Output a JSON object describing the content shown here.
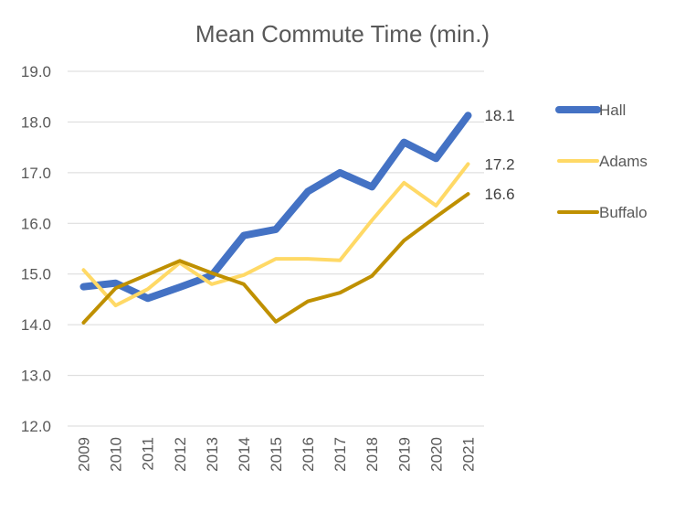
{
  "chart_data": {
    "type": "line",
    "title": "Mean Commute Time (min.)",
    "xlabel": "",
    "ylabel": "",
    "x": [
      "2009",
      "2010",
      "2011",
      "2012",
      "2013",
      "2014",
      "2015",
      "2016",
      "2017",
      "2018",
      "2019",
      "2020",
      "2021"
    ],
    "ylim": [
      12.0,
      19.0
    ],
    "yticks": [
      "12.0",
      "13.0",
      "14.0",
      "15.0",
      "16.0",
      "17.0",
      "18.0",
      "19.0"
    ],
    "grid": true,
    "legend_position": "right",
    "series": [
      {
        "name": "Hall",
        "color": "#4472C4",
        "values": [
          14.75,
          14.82,
          14.52,
          14.74,
          14.97,
          15.76,
          15.88,
          16.63,
          17.0,
          16.72,
          17.6,
          17.28,
          18.13
        ],
        "end_label": "18.1"
      },
      {
        "name": "Adams",
        "color": "#FFD966",
        "values": [
          15.08,
          14.38,
          14.7,
          15.22,
          14.8,
          14.98,
          15.3,
          15.3,
          15.27,
          16.06,
          16.8,
          16.35,
          17.17
        ],
        "end_label": "17.2"
      },
      {
        "name": "Buffalo",
        "color": "#BF9000",
        "values": [
          14.04,
          14.72,
          14.99,
          15.26,
          15.02,
          14.8,
          14.06,
          14.46,
          14.63,
          14.96,
          15.66,
          16.13,
          16.58
        ],
        "end_label": "16.6"
      }
    ]
  }
}
